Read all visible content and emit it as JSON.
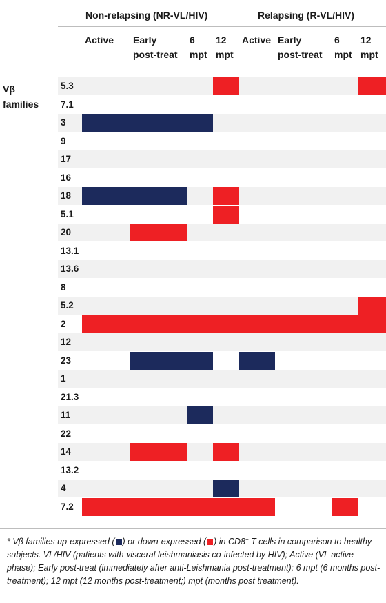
{
  "header": {
    "group_nr": "Non-relapsing (NR-VL/HIV)",
    "group_r": "Relapsing (R-VL/HIV)",
    "columns": [
      {
        "lines": [
          "Active"
        ]
      },
      {
        "lines": [
          "Early",
          "post-treat"
        ]
      },
      {
        "lines": [
          "6",
          "mpt"
        ]
      },
      {
        "lines": [
          "12",
          "mpt"
        ]
      },
      {
        "lines": [
          "Active"
        ]
      },
      {
        "lines": [
          "Early",
          "post-treat"
        ]
      },
      {
        "lines": [
          "6",
          "mpt"
        ]
      },
      {
        "lines": [
          "12",
          "mpt"
        ]
      }
    ]
  },
  "row_header": {
    "line1": "Vβ",
    "line2": "families"
  },
  "colors": {
    "up": "#ee2024",
    "down": "#1c2a5c",
    "stripe": "#f1f1f1"
  },
  "rows": [
    {
      "label": "5.3",
      "cells": [
        0,
        0,
        0,
        1,
        0,
        0,
        0,
        1
      ]
    },
    {
      "label": "7.1",
      "cells": [
        0,
        0,
        0,
        0,
        0,
        0,
        0,
        0
      ]
    },
    {
      "label": "3",
      "cells": [
        -1,
        -1,
        -1,
        0,
        0,
        0,
        0,
        0
      ]
    },
    {
      "label": "9",
      "cells": [
        0,
        0,
        0,
        0,
        0,
        0,
        0,
        0
      ]
    },
    {
      "label": "17",
      "cells": [
        0,
        0,
        0,
        0,
        0,
        0,
        0,
        0
      ]
    },
    {
      "label": "16",
      "cells": [
        0,
        0,
        0,
        0,
        0,
        0,
        0,
        0
      ]
    },
    {
      "label": "18",
      "cells": [
        -1,
        -1,
        0,
        1,
        0,
        0,
        0,
        0
      ]
    },
    {
      "label": "5.1",
      "cells": [
        0,
        0,
        0,
        1,
        0,
        0,
        0,
        0
      ]
    },
    {
      "label": "20",
      "cells": [
        0,
        1,
        0,
        0,
        0,
        0,
        0,
        0
      ]
    },
    {
      "label": "13.1",
      "cells": [
        0,
        0,
        0,
        0,
        0,
        0,
        0,
        0
      ]
    },
    {
      "label": "13.6",
      "cells": [
        0,
        0,
        0,
        0,
        0,
        0,
        0,
        0
      ]
    },
    {
      "label": "8",
      "cells": [
        0,
        0,
        0,
        0,
        0,
        0,
        0,
        0
      ]
    },
    {
      "label": "5.2",
      "cells": [
        0,
        0,
        0,
        0,
        0,
        0,
        0,
        1
      ]
    },
    {
      "label": "2",
      "cells": [
        1,
        1,
        1,
        1,
        1,
        1,
        1,
        1
      ]
    },
    {
      "label": "12",
      "cells": [
        0,
        0,
        0,
        0,
        0,
        0,
        0,
        0
      ]
    },
    {
      "label": "23",
      "cells": [
        0,
        -1,
        -1,
        0,
        -1,
        0,
        0,
        0
      ]
    },
    {
      "label": "1",
      "cells": [
        0,
        0,
        0,
        0,
        0,
        0,
        0,
        0
      ]
    },
    {
      "label": "21.3",
      "cells": [
        0,
        0,
        0,
        0,
        0,
        0,
        0,
        0
      ]
    },
    {
      "label": "11",
      "cells": [
        0,
        0,
        -1,
        0,
        0,
        0,
        0,
        0
      ]
    },
    {
      "label": "22",
      "cells": [
        0,
        0,
        0,
        0,
        0,
        0,
        0,
        0
      ]
    },
    {
      "label": "14",
      "cells": [
        0,
        1,
        0,
        1,
        0,
        0,
        0,
        0
      ]
    },
    {
      "label": "13.2",
      "cells": [
        0,
        0,
        0,
        0,
        0,
        0,
        0,
        0
      ]
    },
    {
      "label": "4",
      "cells": [
        0,
        0,
        0,
        -1,
        0,
        0,
        0,
        0
      ]
    },
    {
      "label": "7.2",
      "cells": [
        1,
        1,
        1,
        1,
        1,
        0,
        1,
        0
      ]
    }
  ],
  "footnote": {
    "star": "*",
    "p1": " Vβ families up-expressed (",
    "p2": ") or down-expressed (",
    "p3": ") in CD8",
    "sup": "+",
    "p4": " T cells in comparison to healthy subjects. VL/HIV (patients with visceral leishmaniasis co-infected by HIV); Active (VL active phase); Early post-treat (immediately after anti-Leishmania post-treatment); 6 mpt (6 months post-treatment); 12 mpt (12 months post-treatment;) mpt (months post treatment)."
  }
}
